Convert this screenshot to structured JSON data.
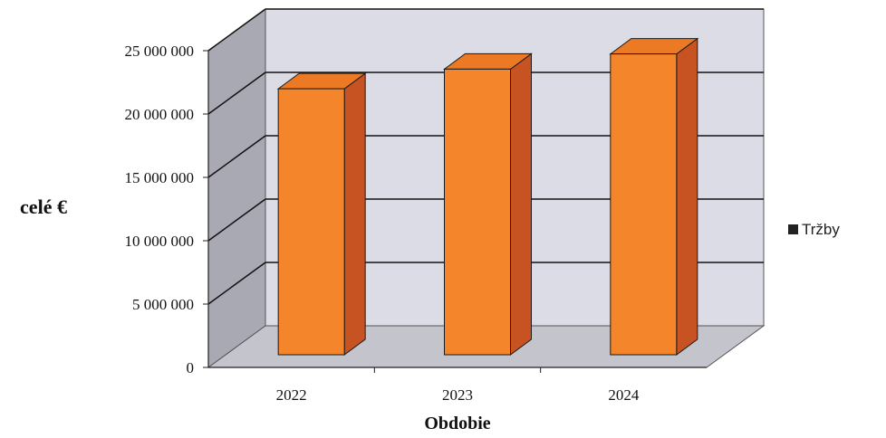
{
  "chart_data": {
    "type": "bar",
    "categories": [
      "2022",
      "2023",
      "2024"
    ],
    "series": [
      {
        "name": "Tržby",
        "values": [
          21850000,
          23400000,
          24600000
        ]
      }
    ],
    "xlabel": "Obdobie",
    "ylabel": "celé €",
    "ylim": [
      0,
      25000000
    ],
    "yticks": [
      {
        "value": 0,
        "label": "0"
      },
      {
        "value": 5000000,
        "label": "5 000 000"
      },
      {
        "value": 10000000,
        "label": "10 000 000"
      },
      {
        "value": 15000000,
        "label": "15 000 000"
      },
      {
        "value": 20000000,
        "label": "20 000 000"
      },
      {
        "value": 25000000,
        "label": "25 000 000"
      }
    ],
    "grid": true,
    "legend_position": "right",
    "style": "3d-column",
    "colors": {
      "bar_front": "#f5852a",
      "bar_top": "#ec7a25",
      "bar_side": "#c85322",
      "bar_outline": "#1a1a1a",
      "back_wall": "#dcdce6",
      "left_wall": "#a9a9b4",
      "floor": "#c4c4cc",
      "gridline": "#111111",
      "legend_swatch": "#222222"
    }
  }
}
